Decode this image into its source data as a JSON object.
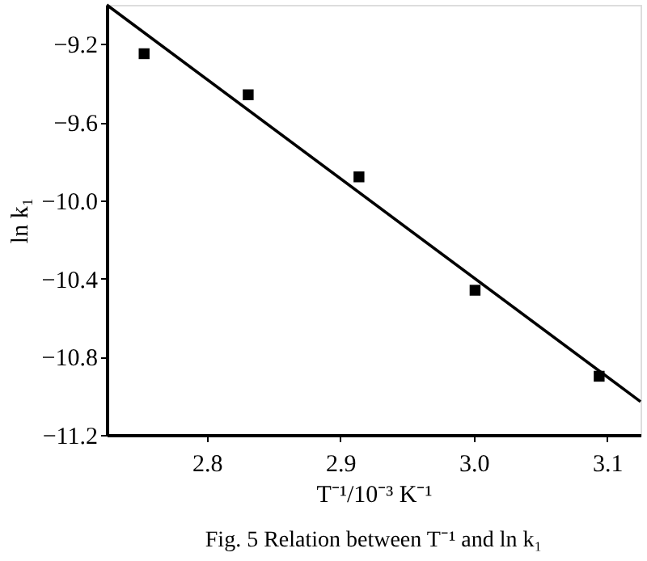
{
  "chart_data": {
    "type": "scatter",
    "xlabel": "T⁻¹/10⁻³ K⁻¹",
    "ylabel": "ln k₁",
    "annotations": [
      "Fig. 5    Relation between T⁻¹ and ln k₁"
    ],
    "xlim": [
      2.725,
      3.125
    ],
    "xticks": [
      2.8,
      2.9,
      {
        "value": 3,
        "label": "3.0"
      },
      3.1
    ],
    "ylim": [
      -11.2,
      -9.0
    ],
    "yticks": [
      -9.2,
      -9.6,
      {
        "value": -10,
        "label": "−10.0"
      },
      -10.4,
      -10.8,
      -11.2
    ],
    "grid": false,
    "series": [
      {
        "marker": "square",
        "color": "#000000",
        "x": [
          2.753,
          2.831,
          2.914,
          3.001,
          3.094
        ],
        "values": [
          -9.25,
          -9.46,
          -9.88,
          -10.46,
          -10.9
        ]
      },
      {
        "type": "line",
        "marker": "none",
        "line_style": "solid",
        "color": "#000000",
        "x": [
          2.725,
          3.125
        ],
        "values": [
          -9.0,
          -11.03
        ]
      }
    ]
  }
}
